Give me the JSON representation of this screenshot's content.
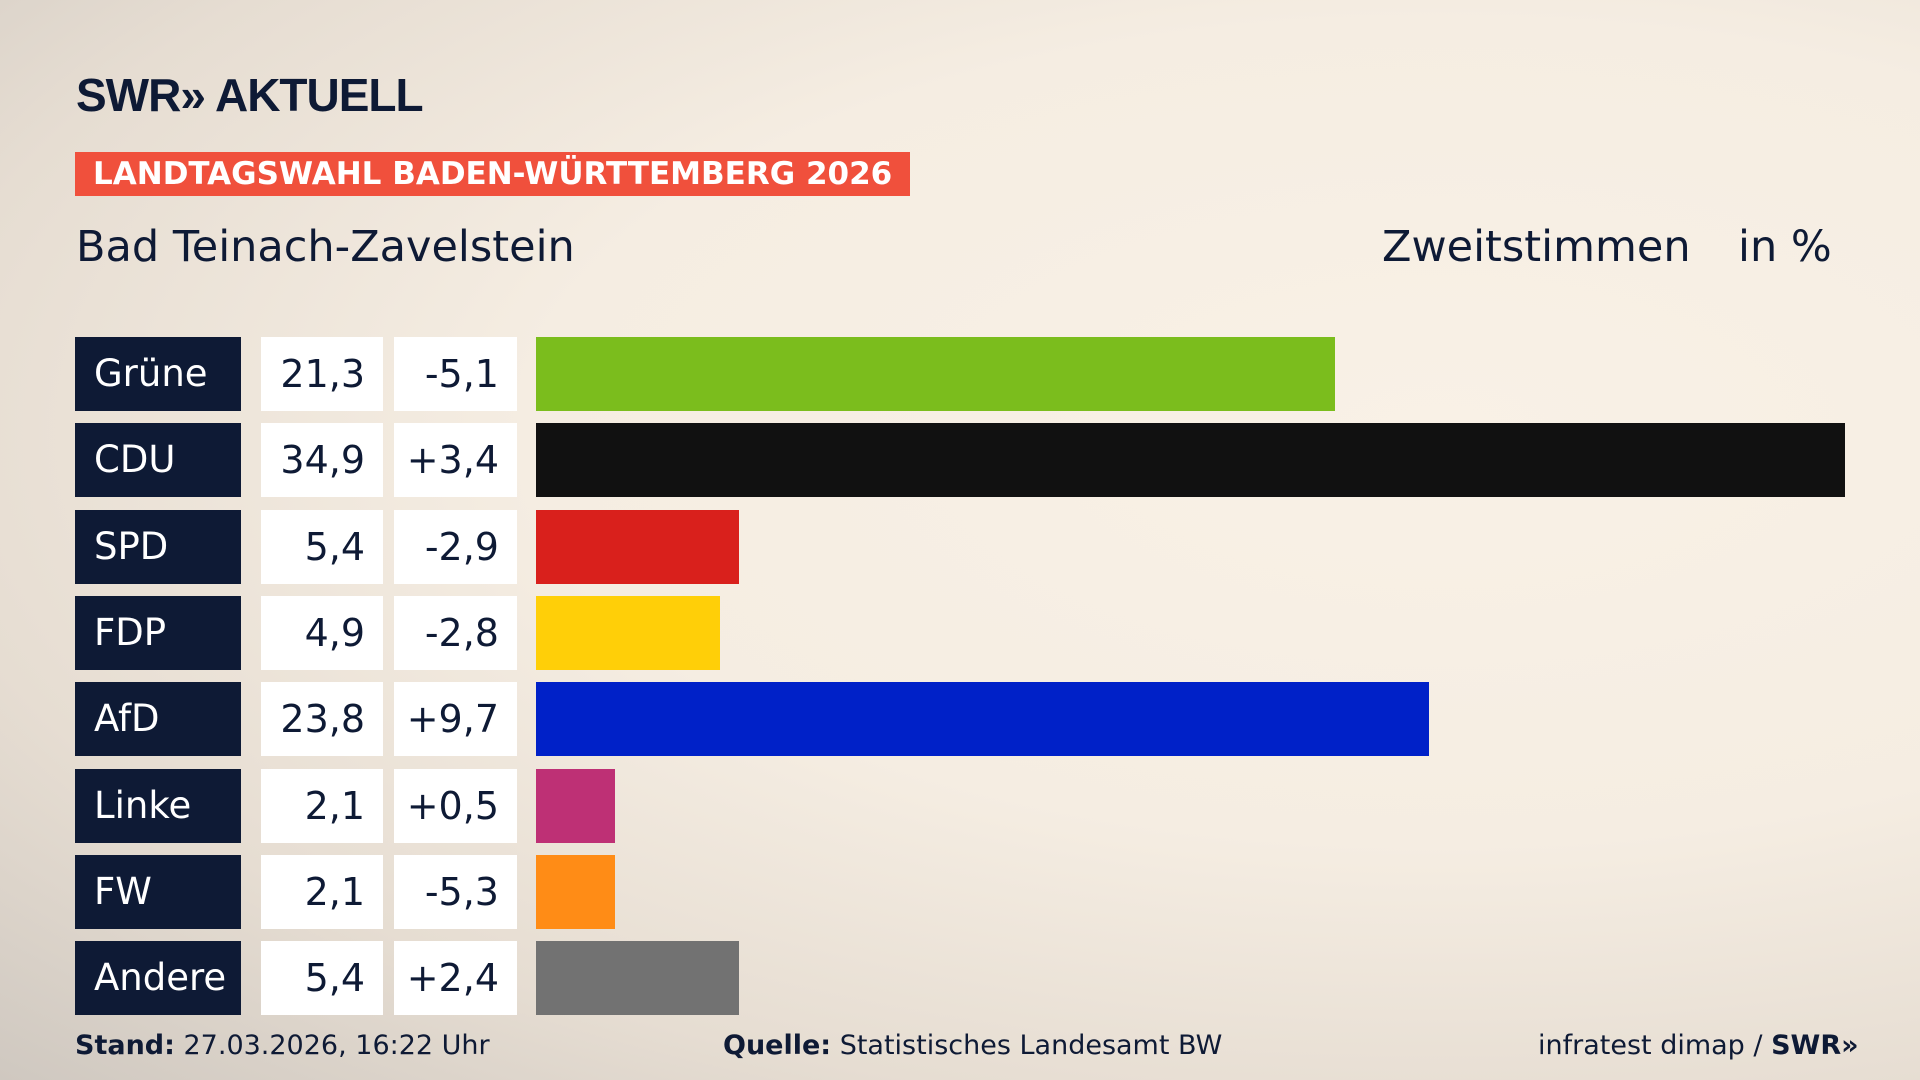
{
  "logo": "SWR» AKTUELL",
  "banner": "LANDTAGSWAHL BADEN-WÜRTTEMBERG 2026",
  "location": "Bad Teinach-Zavelstein",
  "vote_type": "Zweitstimmen",
  "unit": "in %",
  "chart_data": {
    "type": "bar",
    "orientation": "horizontal",
    "categories": [
      "Grüne",
      "CDU",
      "SPD",
      "FDP",
      "AfD",
      "Linke",
      "FW",
      "Andere"
    ],
    "values": [
      21.3,
      34.9,
      5.4,
      4.9,
      23.8,
      2.1,
      2.1,
      5.4
    ],
    "value_labels": [
      "21,3",
      "34,9",
      "5,4",
      "4,9",
      "23,8",
      "2,1",
      "2,1",
      "5,4"
    ],
    "diff_labels": [
      "-5,1",
      "+3,4",
      "-2,9",
      "-2,8",
      "+9,7",
      "+0,5",
      "-5,3",
      "+2,4"
    ],
    "colors": [
      "#7bbd1d",
      "#111111",
      "#d9201c",
      "#ffcf08",
      "#0021c8",
      "#be3075",
      "#ff8c16",
      "#727272"
    ]
  },
  "footer": {
    "stand_label": "Stand:",
    "stand_value": " 27.03.2026, 16:22 Uhr",
    "source_label": "Quelle:",
    "source_value": " Statistisches Landesamt BW",
    "credit": "infratest dimap / ",
    "credit_logo": "SWR»"
  }
}
